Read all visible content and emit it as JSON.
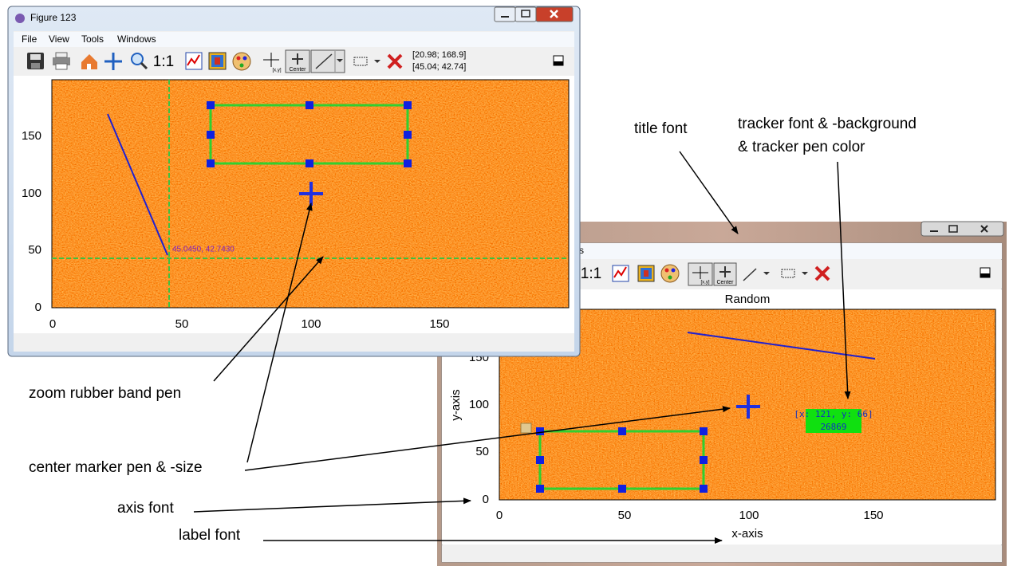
{
  "window_back": {
    "menu_partial": "s",
    "toolbar": {
      "one_to_one": "1:1",
      "crosshair_caption": "[x,y]",
      "center_caption": "Center"
    },
    "plot": {
      "title": "Random",
      "x_label": "x-axis",
      "y_label": "y-axis",
      "x_ticks": [
        "0",
        "50",
        "100",
        "150"
      ],
      "y_ticks": [
        "0",
        "50",
        "100",
        "150"
      ],
      "tracker": [
        "[x: 121, y: 66]",
        "26869"
      ]
    }
  },
  "window_front": {
    "title": "Figure 123",
    "menu": [
      "File",
      "View",
      "Tools",
      "Windows"
    ],
    "toolbar": {
      "one_to_one": "1:1",
      "crosshair_caption": "[x,y]",
      "center_caption": "Center",
      "coordinates": [
        "[20.98; 168.9]",
        "[45.04; 42.74]"
      ]
    },
    "plot": {
      "x_ticks": [
        "0",
        "50",
        "100",
        "150"
      ],
      "y_ticks": [
        "0",
        "50",
        "100",
        "150"
      ],
      "crosshair_label": "45.0450, 42.7430"
    }
  },
  "annotations": {
    "title_font": "title font",
    "tracker": [
      "tracker font & -background",
      "& tracker pen color"
    ],
    "zoom_rubber_band": "zoom rubber band pen",
    "center_marker": "center marker pen & -size",
    "axis_font": "axis font",
    "label_font": "label font"
  }
}
